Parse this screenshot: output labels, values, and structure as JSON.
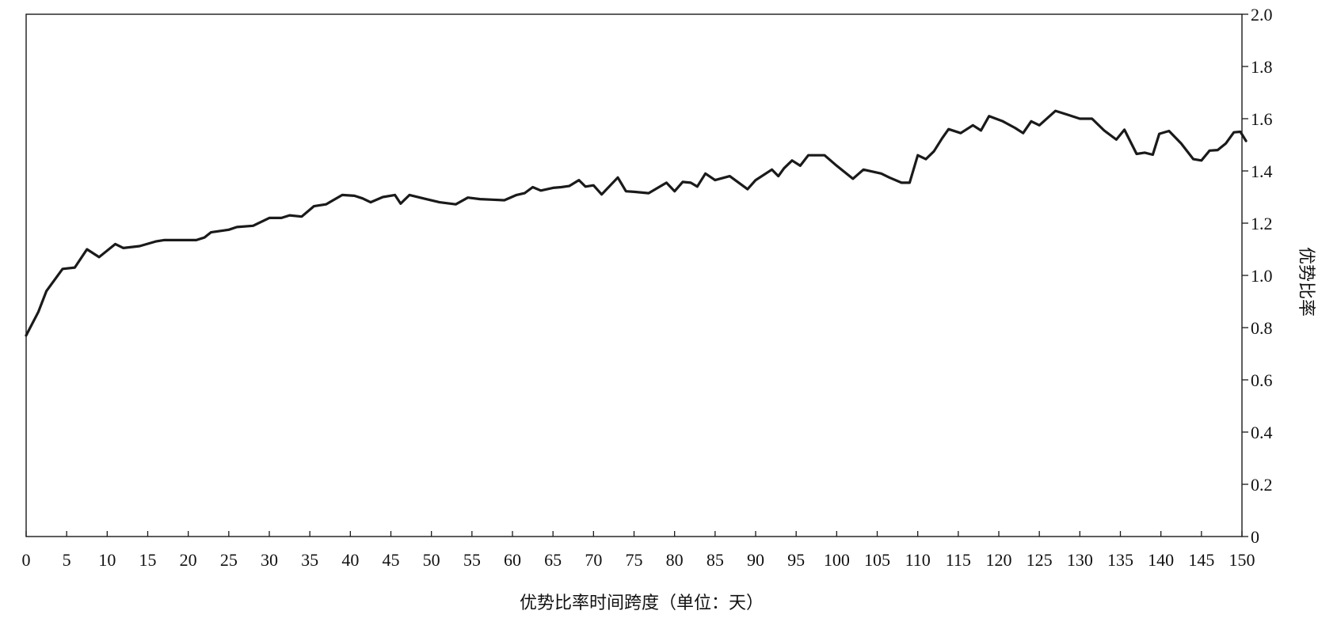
{
  "chart_data": {
    "type": "line",
    "title": "",
    "xlabel": "优势比率时间跨度（单位：天）",
    "ylabel": "优势比率",
    "y_axis_position": "right",
    "grid": false,
    "legend": "none",
    "xlim": [
      0,
      150
    ],
    "ylim": [
      0,
      2.0
    ],
    "x_ticks": [
      "0",
      "5",
      "10",
      "15",
      "20",
      "25",
      "30",
      "35",
      "40",
      "45",
      "50",
      "55",
      "60",
      "65",
      "70",
      "75",
      "80",
      "85",
      "90",
      "95",
      "100",
      "105",
      "110",
      "115",
      "120",
      "125",
      "130",
      "135",
      "140",
      "145",
      "150"
    ],
    "y_ticks": [
      "0",
      "0.2",
      "0.4",
      "0.6",
      "0.8",
      "1.0",
      "1.2",
      "1.4",
      "1.6",
      "1.8",
      "2.0"
    ],
    "line_color": "#1a1a1a",
    "series": [
      {
        "points": [
          [
            0,
            0.77
          ],
          [
            1.5,
            0.86
          ],
          [
            2.5,
            0.94
          ],
          [
            4.5,
            1.025
          ],
          [
            6,
            1.03
          ],
          [
            7.5,
            1.1
          ],
          [
            9,
            1.07
          ],
          [
            11,
            1.12
          ],
          [
            12,
            1.105
          ],
          [
            14,
            1.112
          ],
          [
            16,
            1.13
          ],
          [
            17,
            1.135
          ],
          [
            21,
            1.135
          ],
          [
            22,
            1.145
          ],
          [
            22.8,
            1.165
          ],
          [
            25,
            1.175
          ],
          [
            26,
            1.185
          ],
          [
            28,
            1.19
          ],
          [
            30,
            1.22
          ],
          [
            31.5,
            1.22
          ],
          [
            32.5,
            1.23
          ],
          [
            34,
            1.225
          ],
          [
            35.5,
            1.265
          ],
          [
            37,
            1.272
          ],
          [
            39,
            1.308
          ],
          [
            40.5,
            1.305
          ],
          [
            41.5,
            1.295
          ],
          [
            42.5,
            1.28
          ],
          [
            44,
            1.3
          ],
          [
            45.5,
            1.308
          ],
          [
            46.2,
            1.275
          ],
          [
            47.3,
            1.308
          ],
          [
            49,
            1.295
          ],
          [
            51,
            1.28
          ],
          [
            53,
            1.272
          ],
          [
            54.5,
            1.298
          ],
          [
            56,
            1.292
          ],
          [
            57.5,
            1.29
          ],
          [
            59,
            1.288
          ],
          [
            60.5,
            1.308
          ],
          [
            61.5,
            1.315
          ],
          [
            62.5,
            1.338
          ],
          [
            63.5,
            1.325
          ],
          [
            65,
            1.335
          ],
          [
            66,
            1.338
          ],
          [
            67,
            1.342
          ],
          [
            68.2,
            1.365
          ],
          [
            69,
            1.34
          ],
          [
            70,
            1.345
          ],
          [
            71,
            1.31
          ],
          [
            73,
            1.375
          ],
          [
            74,
            1.322
          ],
          [
            75,
            1.32
          ],
          [
            76.8,
            1.315
          ],
          [
            79,
            1.355
          ],
          [
            80,
            1.322
          ],
          [
            81,
            1.358
          ],
          [
            82,
            1.355
          ],
          [
            82.8,
            1.34
          ],
          [
            83.8,
            1.39
          ],
          [
            85,
            1.365
          ],
          [
            86.8,
            1.38
          ],
          [
            89,
            1.33
          ],
          [
            90,
            1.365
          ],
          [
            92,
            1.405
          ],
          [
            92.8,
            1.38
          ],
          [
            93.5,
            1.41
          ],
          [
            94.5,
            1.44
          ],
          [
            95.5,
            1.42
          ],
          [
            96.5,
            1.46
          ],
          [
            98.5,
            1.46
          ],
          [
            100,
            1.42
          ],
          [
            102,
            1.37
          ],
          [
            103.3,
            1.405
          ],
          [
            105.5,
            1.39
          ],
          [
            106.5,
            1.375
          ],
          [
            108,
            1.355
          ],
          [
            109,
            1.355
          ],
          [
            110,
            1.46
          ],
          [
            111,
            1.445
          ],
          [
            112,
            1.475
          ],
          [
            113,
            1.525
          ],
          [
            113.8,
            1.56
          ],
          [
            115.3,
            1.545
          ],
          [
            116.8,
            1.575
          ],
          [
            117.8,
            1.555
          ],
          [
            118.8,
            1.61
          ],
          [
            120.5,
            1.59
          ],
          [
            122,
            1.565
          ],
          [
            123,
            1.545
          ],
          [
            124,
            1.59
          ],
          [
            125,
            1.575
          ],
          [
            127,
            1.63
          ],
          [
            128.5,
            1.615
          ],
          [
            130,
            1.6
          ],
          [
            131.5,
            1.6
          ],
          [
            133,
            1.555
          ],
          [
            134.5,
            1.52
          ],
          [
            135.5,
            1.558
          ],
          [
            137,
            1.465
          ],
          [
            138,
            1.47
          ],
          [
            139,
            1.462
          ],
          [
            139.8,
            1.542
          ],
          [
            141,
            1.553
          ],
          [
            142.5,
            1.505
          ],
          [
            144,
            1.445
          ],
          [
            145,
            1.44
          ],
          [
            146,
            1.478
          ],
          [
            147,
            1.48
          ],
          [
            148,
            1.505
          ],
          [
            149,
            1.548
          ],
          [
            149.8,
            1.55
          ],
          [
            150.5,
            1.515
          ]
        ]
      }
    ]
  }
}
